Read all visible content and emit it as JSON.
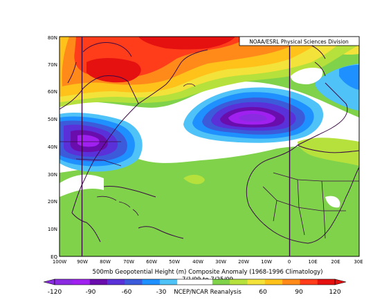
{
  "credit": "NOAA/ESRL Physical Sciences Division",
  "caption": {
    "title": "500mb Geopotential Height (m) Composite Anomaly (1968-1996 Climatology)",
    "dates": "7/1/09 to 7/25/09",
    "source": "NCEP/NCAR Reanalysis"
  },
  "map": {
    "lat_labels": [
      "80N",
      "70N",
      "60N",
      "50N",
      "40N",
      "30N",
      "20N",
      "10N",
      "EQ"
    ],
    "lon_labels": [
      "100W",
      "90W",
      "80W",
      "70W",
      "60W",
      "50W",
      "40W",
      "30W",
      "20W",
      "10W",
      "0",
      "10E",
      "20E",
      "30E"
    ],
    "lat_range": [
      0,
      80
    ],
    "lon_range": [
      -100,
      30
    ],
    "reference_lines": [
      "90W",
      "0"
    ],
    "colormap": [
      "#8a2be2",
      "#a020f0",
      "#6a0dad",
      "#5a30d8",
      "#3b5bdb",
      "#1e90ff",
      "#4fc3f7",
      "#ffffff",
      "#ffffff",
      "#7fd24a",
      "#b6e03c",
      "#f3e23a",
      "#ffc21a",
      "#ff8a1a",
      "#ff3d1a",
      "#e51010"
    ]
  },
  "colorbar": {
    "ticks": [
      "-120",
      "-90",
      "-60",
      "-30",
      "",
      "",
      "",
      "",
      "60",
      "90",
      "120"
    ],
    "range": [
      -120,
      120
    ]
  },
  "anomaly_features": [
    {
      "label": "Positive anomaly over Greenland / northern Canada",
      "sign": "positive",
      "approx_peak": 120
    },
    {
      "label": "Negative anomaly over North Atlantic (about 50N 20W)",
      "sign": "negative",
      "approx_peak": -120
    },
    {
      "label": "Negative anomaly over eastern United States",
      "sign": "negative",
      "approx_peak": -90
    },
    {
      "label": "Positive anomaly over subtropical Atlantic / Africa",
      "sign": "positive",
      "approx_peak": 30
    }
  ]
}
